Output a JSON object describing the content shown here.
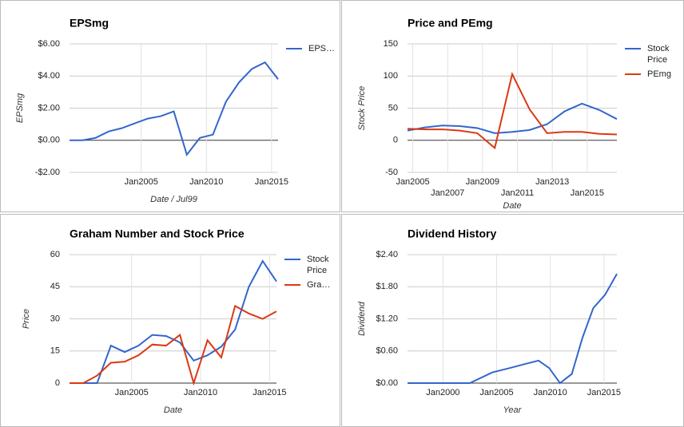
{
  "chart_data": [
    {
      "type": "line",
      "title": "EPSmg",
      "x_label": "Date / Jul99",
      "y_label": "EPSmg",
      "x": [
        1999.5,
        2000.5,
        2001.5,
        2002.5,
        2003.5,
        2004.5,
        2005.5,
        2006.5,
        2007.5,
        2008.5,
        2009.5,
        2010.5,
        2011.5,
        2012.5,
        2013.5,
        2014.5,
        2015.5
      ],
      "series": [
        {
          "name": "EPS…",
          "color": "#3366cc",
          "values": [
            0,
            0,
            0.15,
            0.55,
            0.75,
            1.05,
            1.35,
            1.5,
            1.8,
            -0.9,
            0.15,
            0.35,
            2.4,
            3.6,
            4.45,
            4.85,
            3.8
          ]
        }
      ],
      "xlim": [
        1999.5,
        2015.5
      ],
      "xticks": [
        {
          "value": 2005,
          "label": "Jan2005"
        },
        {
          "value": 2010,
          "label": "Jan2010"
        },
        {
          "value": 2015,
          "label": "Jan2015"
        }
      ],
      "ylim": [
        -2,
        6
      ],
      "yticks": [
        {
          "value": -2,
          "label": "-$2.00"
        },
        {
          "value": 0,
          "label": "$0.00"
        },
        {
          "value": 2,
          "label": "$2.00"
        },
        {
          "value": 4,
          "label": "$4.00"
        },
        {
          "value": 6,
          "label": "$6.00"
        }
      ],
      "grid": true,
      "legend": "right"
    },
    {
      "type": "line",
      "title": "Price and PEmg",
      "x_label": "Date",
      "y_label": "Stock Price",
      "x": [
        2004.7,
        2005.7,
        2006.7,
        2007.7,
        2008.7,
        2009.7,
        2010.7,
        2011.7,
        2012.7,
        2013.7,
        2014.7,
        2015.7,
        2016.7
      ],
      "series": [
        {
          "name": "Stock Price",
          "color": "#3366cc",
          "values": [
            15,
            20,
            23,
            22,
            19,
            11,
            13,
            16,
            25,
            45,
            57,
            47,
            33
          ]
        },
        {
          "name": "PEmg",
          "color": "#dc3912",
          "values": [
            18,
            17,
            17,
            15,
            11,
            -12,
            103,
            48,
            11,
            13,
            13,
            10,
            9
          ]
        }
      ],
      "xlim": [
        2004.7,
        2016.7
      ],
      "xticks": [
        {
          "value": 2005,
          "label": "Jan2005"
        },
        {
          "value": 2007,
          "label": "Jan2007"
        },
        {
          "value": 2009,
          "label": "Jan2009"
        },
        {
          "value": 2011,
          "label": "Jan2011"
        },
        {
          "value": 2013,
          "label": "Jan2013"
        },
        {
          "value": 2015,
          "label": "Jan2015"
        }
      ],
      "ylim": [
        -50,
        150
      ],
      "yticks": [
        -50,
        0,
        50,
        100,
        150
      ],
      "grid": true,
      "legend": "right"
    },
    {
      "type": "line",
      "title": "Graham Number and Stock Price",
      "x_label": "Date",
      "y_label": "Price",
      "x": [
        2000.5,
        2001.5,
        2002.5,
        2003.5,
        2004.5,
        2005.5,
        2006.5,
        2007.5,
        2008.5,
        2009.5,
        2010.5,
        2011.5,
        2012.5,
        2013.5,
        2014.5,
        2015.5
      ],
      "series": [
        {
          "name": "Stock Price",
          "color": "#3366cc",
          "values": [
            0,
            0,
            0,
            17.5,
            14.5,
            17.5,
            22.5,
            22,
            19,
            10.5,
            13,
            17,
            25,
            45,
            57,
            47.5
          ]
        },
        {
          "name": "Gra…",
          "color": "#dc3912",
          "values": [
            0,
            0,
            3.5,
            9.5,
            10,
            13,
            18,
            17.5,
            22.5,
            0,
            20,
            12,
            36,
            32.5,
            30,
            33.5
          ]
        }
      ],
      "xlim": [
        2000.5,
        2015.5
      ],
      "xticks": [
        {
          "value": 2005,
          "label": "Jan2005"
        },
        {
          "value": 2010,
          "label": "Jan2010"
        },
        {
          "value": 2015,
          "label": "Jan2015"
        }
      ],
      "ylim": [
        0,
        60
      ],
      "yticks": [
        0,
        15,
        30,
        45,
        60
      ],
      "grid": true,
      "legend": "right"
    },
    {
      "type": "line",
      "title": "Dividend History",
      "x_label": "Year",
      "y_label": "Dividend",
      "x": [
        1996.7,
        2002.5,
        2004.6,
        2006.2,
        2007.9,
        2008.9,
        2009.9,
        2010.9,
        2012,
        2013,
        2014,
        2015.1,
        2016.2
      ],
      "series": [
        {
          "color": "#3366cc",
          "values": [
            0,
            0,
            0.2,
            0.28,
            0.37,
            0.42,
            0.28,
            0,
            0.17,
            0.85,
            1.4,
            1.65,
            2.04
          ]
        }
      ],
      "xlim": [
        1996.7,
        2016.2
      ],
      "xticks": [
        {
          "value": 2000,
          "label": "Jan2000"
        },
        {
          "value": 2005,
          "label": "Jan2005"
        },
        {
          "value": 2010,
          "label": "Jan2010"
        },
        {
          "value": 2015,
          "label": "Jan2015"
        }
      ],
      "ylim": [
        0,
        2.4
      ],
      "yticks": [
        {
          "value": 0,
          "label": "$0.00"
        },
        {
          "value": 0.6,
          "label": "$0.60"
        },
        {
          "value": 1.2,
          "label": "$1.20"
        },
        {
          "value": 1.8,
          "label": "$1.80"
        },
        {
          "value": 2.4,
          "label": "$2.40"
        }
      ],
      "grid": true
    }
  ]
}
